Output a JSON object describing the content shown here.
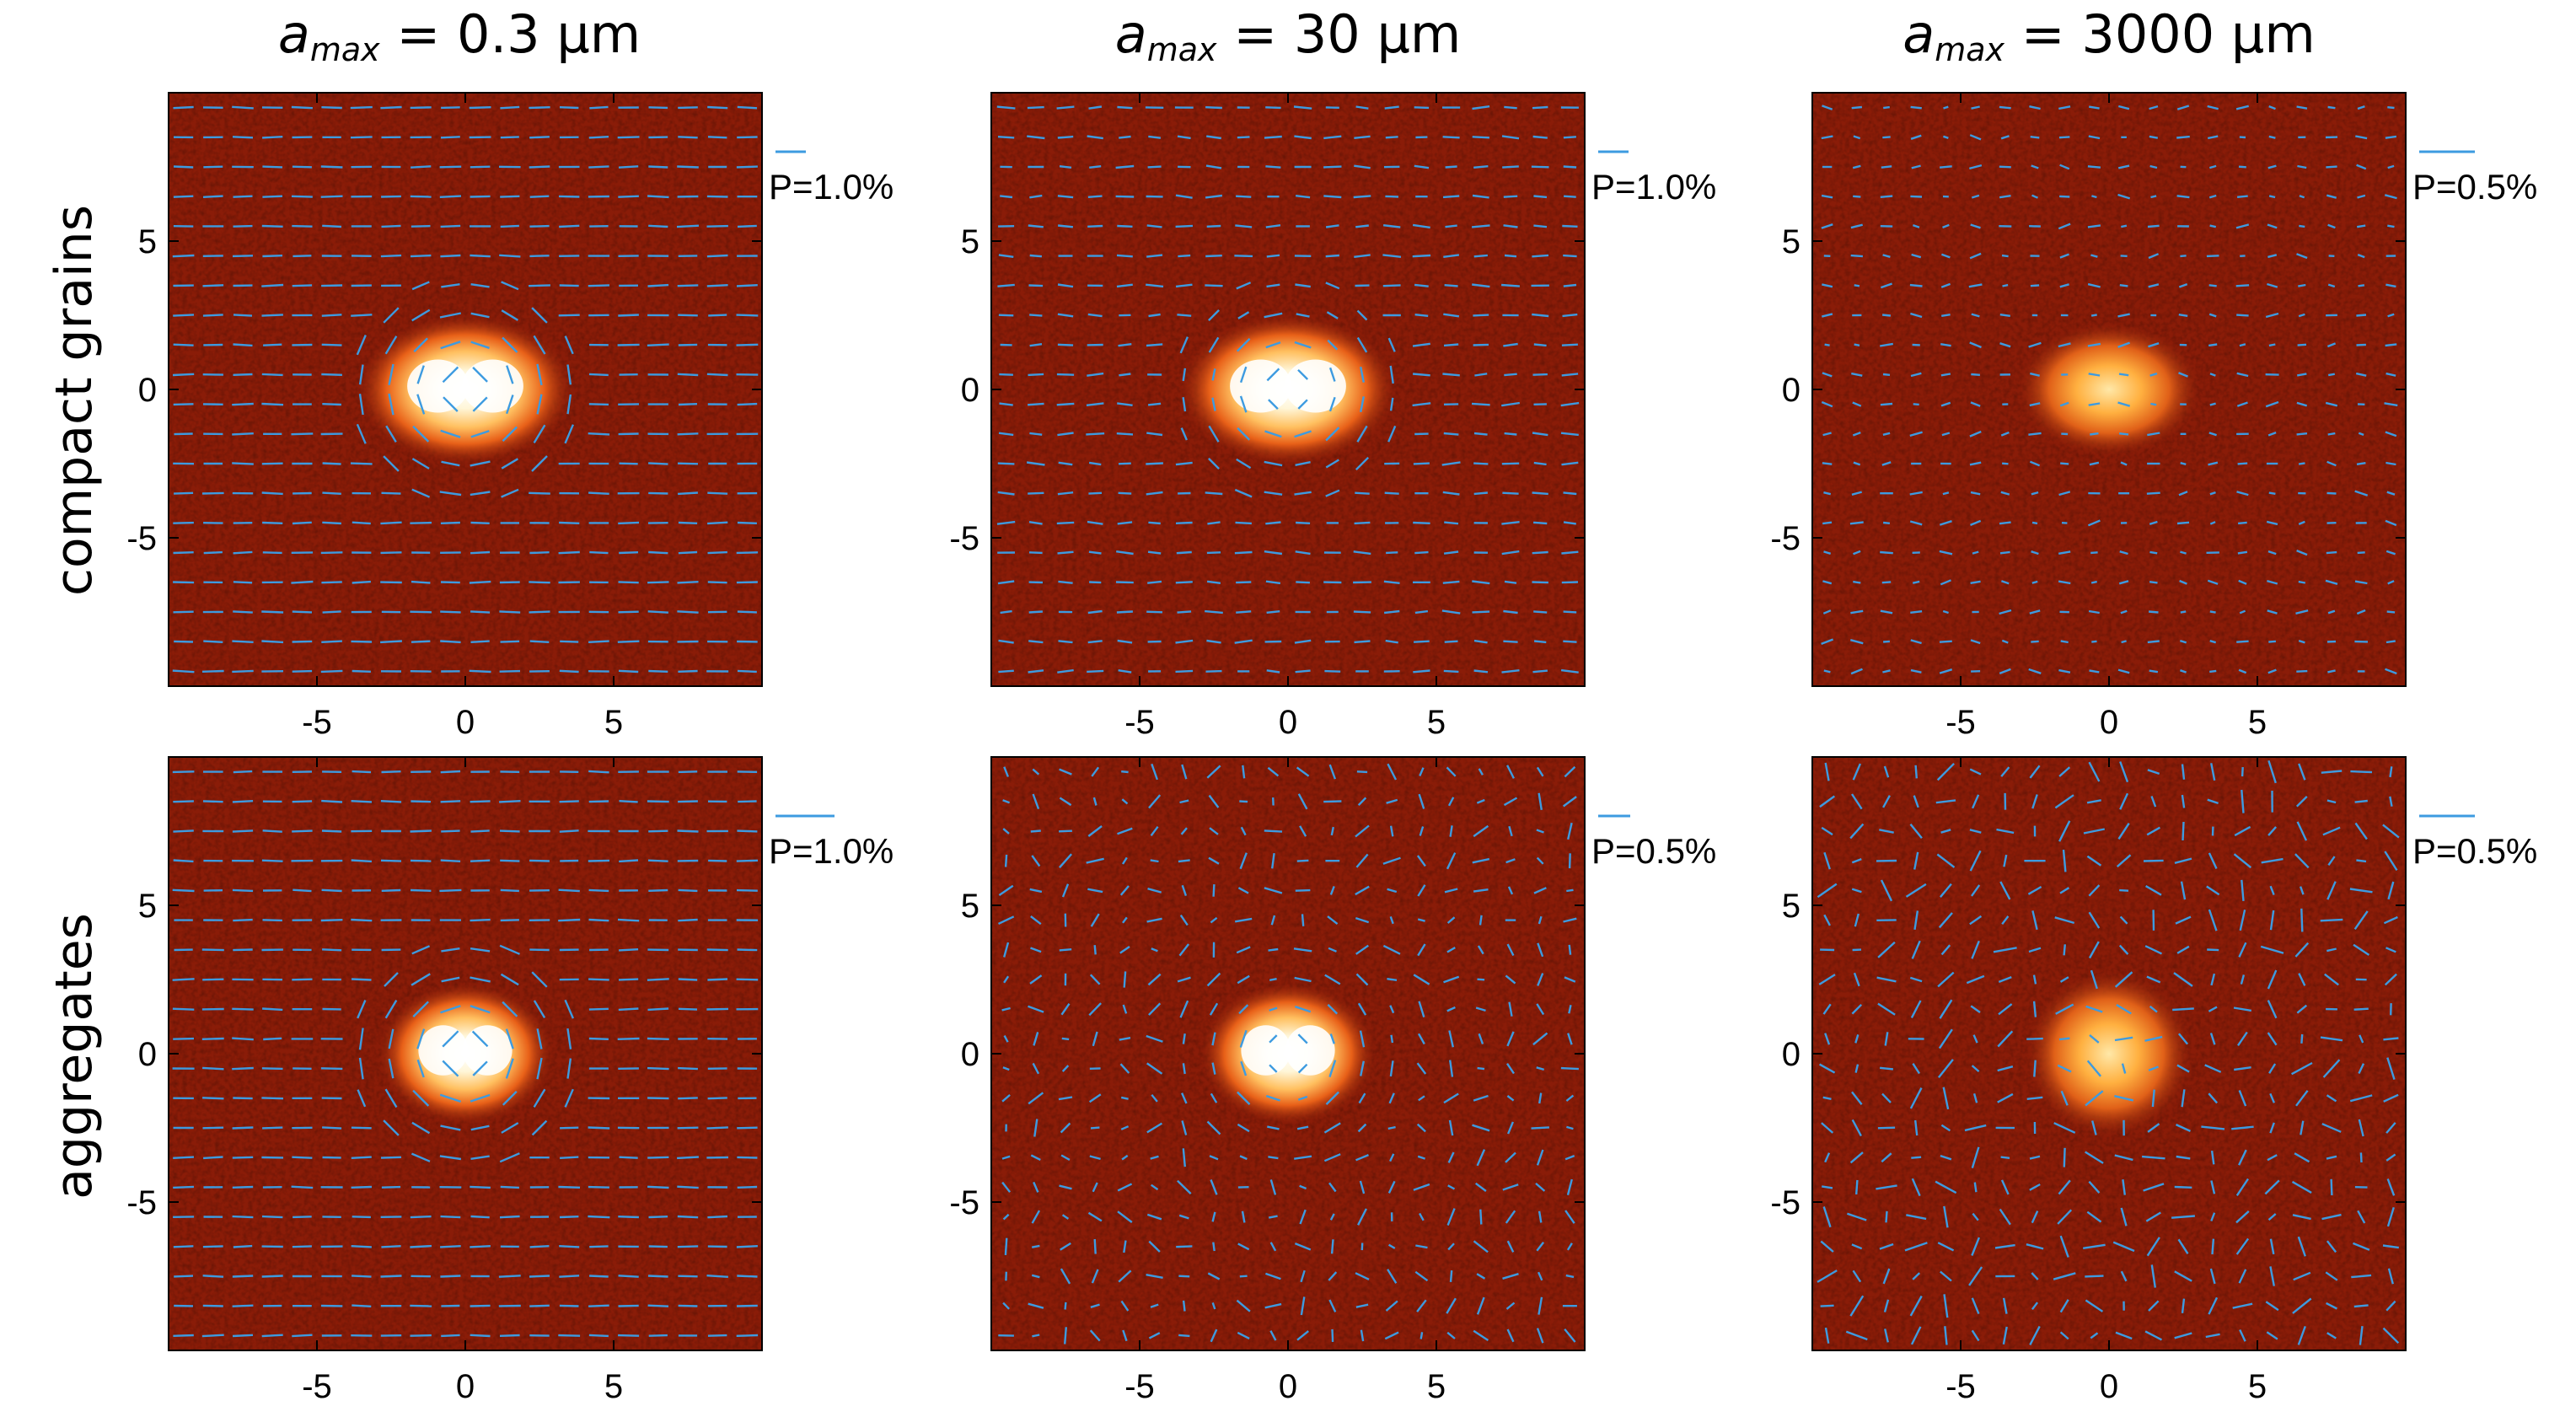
{
  "figure": {
    "column_titles": [
      {
        "symbol": "a",
        "subscript": "max",
        "value_text": " = 0.3 μm"
      },
      {
        "symbol": "a",
        "subscript": "max",
        "value_text": " = 30 μm"
      },
      {
        "symbol": "a",
        "subscript": "max",
        "value_text": " = 3000 μm"
      }
    ],
    "row_labels": [
      "compact grains",
      "aggregates"
    ],
    "colors": {
      "background_map": "#8a1c08",
      "vector": "#3d9be0",
      "frame": "#000000"
    }
  },
  "chart_data": {
    "type": "heatmap",
    "description_of_panels": "polarization vector maps over intensity",
    "x_ticks": [
      -5,
      0,
      5
    ],
    "y_ticks": [
      5,
      0,
      -5
    ],
    "xlim": [
      -10,
      10
    ],
    "ylim": [
      -10,
      10
    ],
    "panels": [
      {
        "row": 0,
        "col": 0,
        "scale_label": "P=1.0%",
        "source": "bright",
        "vectors": "azimuthal-strong"
      },
      {
        "row": 0,
        "col": 1,
        "scale_label": "P=1.0%",
        "source": "bright",
        "vectors": "azimuthal-medium"
      },
      {
        "row": 0,
        "col": 2,
        "scale_label": "P=0.5%",
        "source": "dim",
        "vectors": "weak"
      },
      {
        "row": 1,
        "col": 0,
        "scale_label": "P=1.0%",
        "source": "bright-small",
        "vectors": "azimuthal-strong"
      },
      {
        "row": 1,
        "col": 1,
        "scale_label": "P=0.5%",
        "source": "bright-small",
        "vectors": "random-medium"
      },
      {
        "row": 1,
        "col": 2,
        "scale_label": "P=0.5%",
        "source": "dim-small",
        "vectors": "random-strong"
      }
    ]
  }
}
